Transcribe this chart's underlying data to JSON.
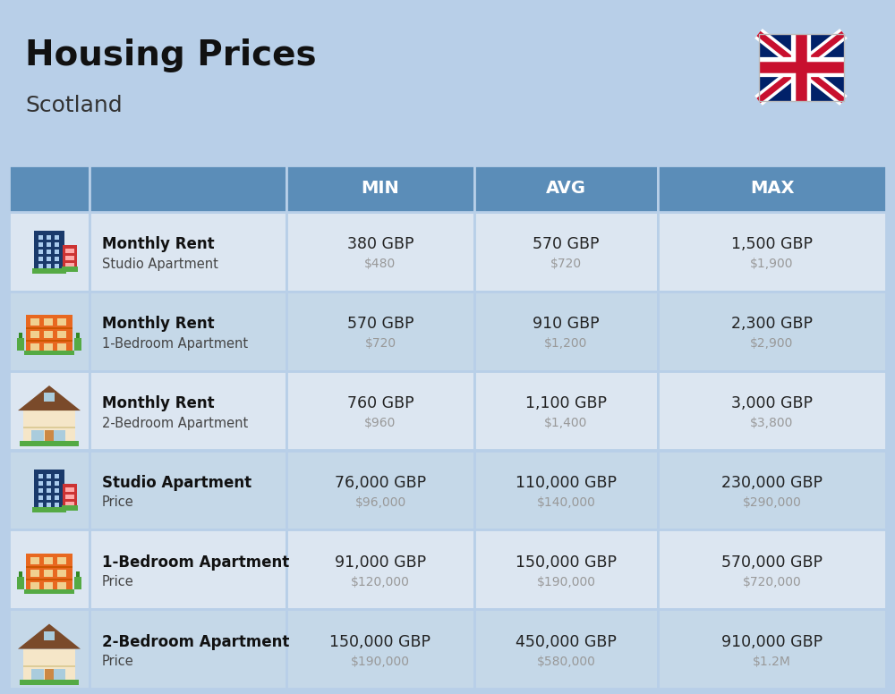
{
  "title": "Housing Prices",
  "subtitle": "Scotland",
  "background_color": "#b8cfe8",
  "header_bg_color": "#5b8db8",
  "header_text_color": "#ffffff",
  "row_colors": [
    "#dce6f1",
    "#c5d8e8"
  ],
  "col_headers": [
    "MIN",
    "AVG",
    "MAX"
  ],
  "rows": [
    {
      "bold_label": "Monthly Rent",
      "sub_label": "Studio Apartment",
      "icon_type": "studio_blue",
      "min_gbp": "380 GBP",
      "min_usd": "$480",
      "avg_gbp": "570 GBP",
      "avg_usd": "$720",
      "max_gbp": "1,500 GBP",
      "max_usd": "$1,900"
    },
    {
      "bold_label": "Monthly Rent",
      "sub_label": "1-Bedroom Apartment",
      "icon_type": "apt_orange",
      "min_gbp": "570 GBP",
      "min_usd": "$720",
      "avg_gbp": "910 GBP",
      "avg_usd": "$1,200",
      "max_gbp": "2,300 GBP",
      "max_usd": "$2,900"
    },
    {
      "bold_label": "Monthly Rent",
      "sub_label": "2-Bedroom Apartment",
      "icon_type": "house_beige",
      "min_gbp": "760 GBP",
      "min_usd": "$960",
      "avg_gbp": "1,100 GBP",
      "avg_usd": "$1,400",
      "max_gbp": "3,000 GBP",
      "max_usd": "$3,800"
    },
    {
      "bold_label": "Studio Apartment",
      "sub_label": "Price",
      "icon_type": "studio_blue",
      "min_gbp": "76,000 GBP",
      "min_usd": "$96,000",
      "avg_gbp": "110,000 GBP",
      "avg_usd": "$140,000",
      "max_gbp": "230,000 GBP",
      "max_usd": "$290,000"
    },
    {
      "bold_label": "1-Bedroom Apartment",
      "sub_label": "Price",
      "icon_type": "apt_orange",
      "min_gbp": "91,000 GBP",
      "min_usd": "$120,000",
      "avg_gbp": "150,000 GBP",
      "avg_usd": "$190,000",
      "max_gbp": "570,000 GBP",
      "max_usd": "$720,000"
    },
    {
      "bold_label": "2-Bedroom Apartment",
      "sub_label": "Price",
      "icon_type": "house_beige",
      "min_gbp": "150,000 GBP",
      "min_usd": "$190,000",
      "avg_gbp": "450,000 GBP",
      "avg_usd": "$580,000",
      "max_gbp": "910,000 GBP",
      "max_usd": "$1.2M"
    }
  ],
  "usd_color": "#999999",
  "text_color": "#444444",
  "label_bold_color": "#111111",
  "cell_text_color": "#222222",
  "title_color": "#111111",
  "subtitle_color": "#333333"
}
